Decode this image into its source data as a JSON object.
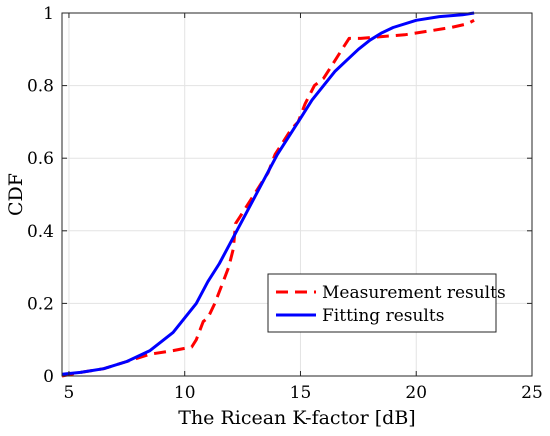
{
  "chart_data": {
    "type": "line",
    "title": "",
    "xlabel": "The Ricean K-factor [dB]",
    "ylabel": "CDF",
    "xlim": [
      4.7,
      25
    ],
    "ylim": [
      0,
      1
    ],
    "xticks": [
      5,
      10,
      15,
      20,
      25
    ],
    "yticks": [
      0,
      0.2,
      0.4,
      0.6,
      0.8,
      1
    ],
    "xtick_labels": [
      "5",
      "10",
      "15",
      "20",
      "25"
    ],
    "ytick_labels": [
      "0",
      "0.2",
      "0.4",
      "0.6",
      "0.8",
      "1"
    ],
    "grid": true,
    "legend": {
      "placement": "bottom-right"
    },
    "series": [
      {
        "name": "Measurement results",
        "style": "dashed",
        "color": "#ff0000",
        "x": [
          4.7,
          5.5,
          6.5,
          7.5,
          8.5,
          9.5,
          10.3,
          10.5,
          10.8,
          11.0,
          11.3,
          11.6,
          11.9,
          12.1,
          12.2,
          12.4,
          12.7,
          13.0,
          13.3,
          13.6,
          13.9,
          14.2,
          14.6,
          14.9,
          15.2,
          15.6,
          16.0,
          16.4,
          16.8,
          17.1,
          17.6,
          18.5,
          19.5,
          20.5,
          21.5,
          22.2,
          22.5
        ],
        "y": [
          0.0,
          0.01,
          0.02,
          0.04,
          0.06,
          0.07,
          0.08,
          0.1,
          0.15,
          0.16,
          0.2,
          0.25,
          0.3,
          0.35,
          0.42,
          0.44,
          0.47,
          0.5,
          0.53,
          0.56,
          0.61,
          0.64,
          0.68,
          0.7,
          0.75,
          0.8,
          0.82,
          0.86,
          0.9,
          0.93,
          0.93,
          0.935,
          0.94,
          0.95,
          0.96,
          0.97,
          0.98
        ]
      },
      {
        "name": "Fitting results",
        "style": "solid",
        "color": "#0000ff",
        "x": [
          4.7,
          5.5,
          6.5,
          7.5,
          8.5,
          9.5,
          10.5,
          11.0,
          11.5,
          12.0,
          12.5,
          13.0,
          13.5,
          14.0,
          14.5,
          15.0,
          15.5,
          16.0,
          16.5,
          17.0,
          17.5,
          18.0,
          18.5,
          19.0,
          20.0,
          21.0,
          22.0,
          22.5
        ],
        "y": [
          0.005,
          0.01,
          0.02,
          0.04,
          0.07,
          0.12,
          0.2,
          0.26,
          0.31,
          0.37,
          0.43,
          0.49,
          0.55,
          0.61,
          0.66,
          0.71,
          0.76,
          0.8,
          0.84,
          0.87,
          0.9,
          0.925,
          0.945,
          0.96,
          0.98,
          0.99,
          0.995,
          1.0
        ]
      }
    ]
  }
}
